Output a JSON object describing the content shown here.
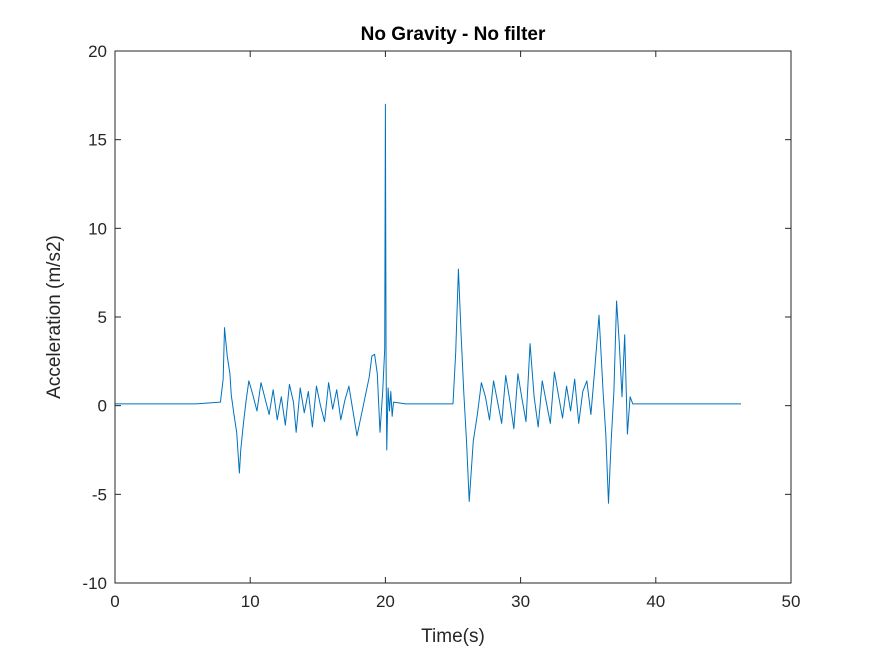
{
  "chart_data": {
    "type": "line",
    "title": "No Gravity - No filter",
    "xlabel": "Time(s)",
    "ylabel": "Acceleration (m/s2)",
    "xlim": [
      0,
      50
    ],
    "ylim": [
      -10,
      20
    ],
    "x_ticks": [
      "0",
      "10",
      "20",
      "30",
      "40",
      "50"
    ],
    "y_ticks": [
      "-10",
      "-5",
      "0",
      "5",
      "10",
      "15",
      "20"
    ],
    "grid": false,
    "line_color": "#0072BD",
    "series": [
      {
        "x": [
          0,
          2,
          4,
          6,
          7.8,
          8.0,
          8.1,
          8.3,
          8.5,
          8.6,
          8.8,
          9.0,
          9.2,
          9.3,
          9.5,
          9.7,
          9.9,
          10.2,
          10.5,
          10.8,
          11.1,
          11.4,
          11.7,
          12.0,
          12.3,
          12.6,
          12.9,
          13.2,
          13.4,
          13.7,
          14.0,
          14.3,
          14.6,
          14.9,
          15.2,
          15.5,
          15.8,
          16.1,
          16.4,
          16.7,
          17.0,
          17.3,
          17.6,
          17.9,
          18.2,
          18.5,
          18.8,
          19.0,
          19.2,
          19.4,
          19.6,
          19.8,
          19.95,
          20.0,
          20.05,
          20.1,
          20.2,
          20.3,
          20.4,
          20.5,
          20.6,
          21.5,
          23,
          24.5,
          25.0,
          25.2,
          25.4,
          25.6,
          25.8,
          26.0,
          26.2,
          26.5,
          26.8,
          27.1,
          27.4,
          27.7,
          28.0,
          28.3,
          28.6,
          28.9,
          29.2,
          29.5,
          29.8,
          30.1,
          30.4,
          30.7,
          31.0,
          31.3,
          31.6,
          31.9,
          32.2,
          32.5,
          32.8,
          33.1,
          33.4,
          33.7,
          34.0,
          34.3,
          34.6,
          34.9,
          35.2,
          35.5,
          35.8,
          36.1,
          36.3,
          36.5,
          36.7,
          36.9,
          37.1,
          37.3,
          37.5,
          37.7,
          37.9,
          38.1,
          38.3,
          39,
          42,
          46.3
        ],
        "y": [
          0.1,
          0.1,
          0.1,
          0.1,
          0.2,
          1.5,
          4.4,
          2.8,
          1.8,
          0.6,
          -0.5,
          -1.5,
          -3.8,
          -2.5,
          -1.0,
          0.3,
          1.4,
          0.6,
          -0.3,
          1.3,
          0.4,
          -0.5,
          0.9,
          -0.8,
          0.5,
          -1.1,
          1.2,
          0.2,
          -1.5,
          1.0,
          -0.4,
          0.8,
          -1.2,
          1.1,
          0.0,
          -0.9,
          1.3,
          -0.2,
          0.9,
          -0.8,
          0.3,
          1.1,
          -0.3,
          -1.7,
          -0.6,
          0.5,
          1.6,
          2.8,
          2.9,
          1.8,
          -1.5,
          0.8,
          3.2,
          17.0,
          2.5,
          -2.5,
          1.0,
          -0.3,
          0.8,
          -0.6,
          0.2,
          0.1,
          0.1,
          0.1,
          0.1,
          3.0,
          7.7,
          4.0,
          0.7,
          -2.0,
          -5.4,
          -2.0,
          -0.5,
          1.3,
          0.5,
          -0.8,
          1.4,
          0.2,
          -1.0,
          1.7,
          0.3,
          -1.3,
          1.8,
          0.4,
          -0.9,
          3.5,
          0.5,
          -1.2,
          1.4,
          0.2,
          -1.0,
          1.9,
          0.6,
          -0.7,
          1.1,
          -0.3,
          1.5,
          -1.0,
          0.8,
          1.4,
          -0.5,
          2.2,
          5.1,
          0.8,
          -1.6,
          -5.5,
          -2.0,
          0.8,
          5.9,
          3.5,
          0.5,
          4.0,
          -1.6,
          0.5,
          0.1,
          0.1,
          0.1,
          0.1
        ]
      }
    ]
  }
}
